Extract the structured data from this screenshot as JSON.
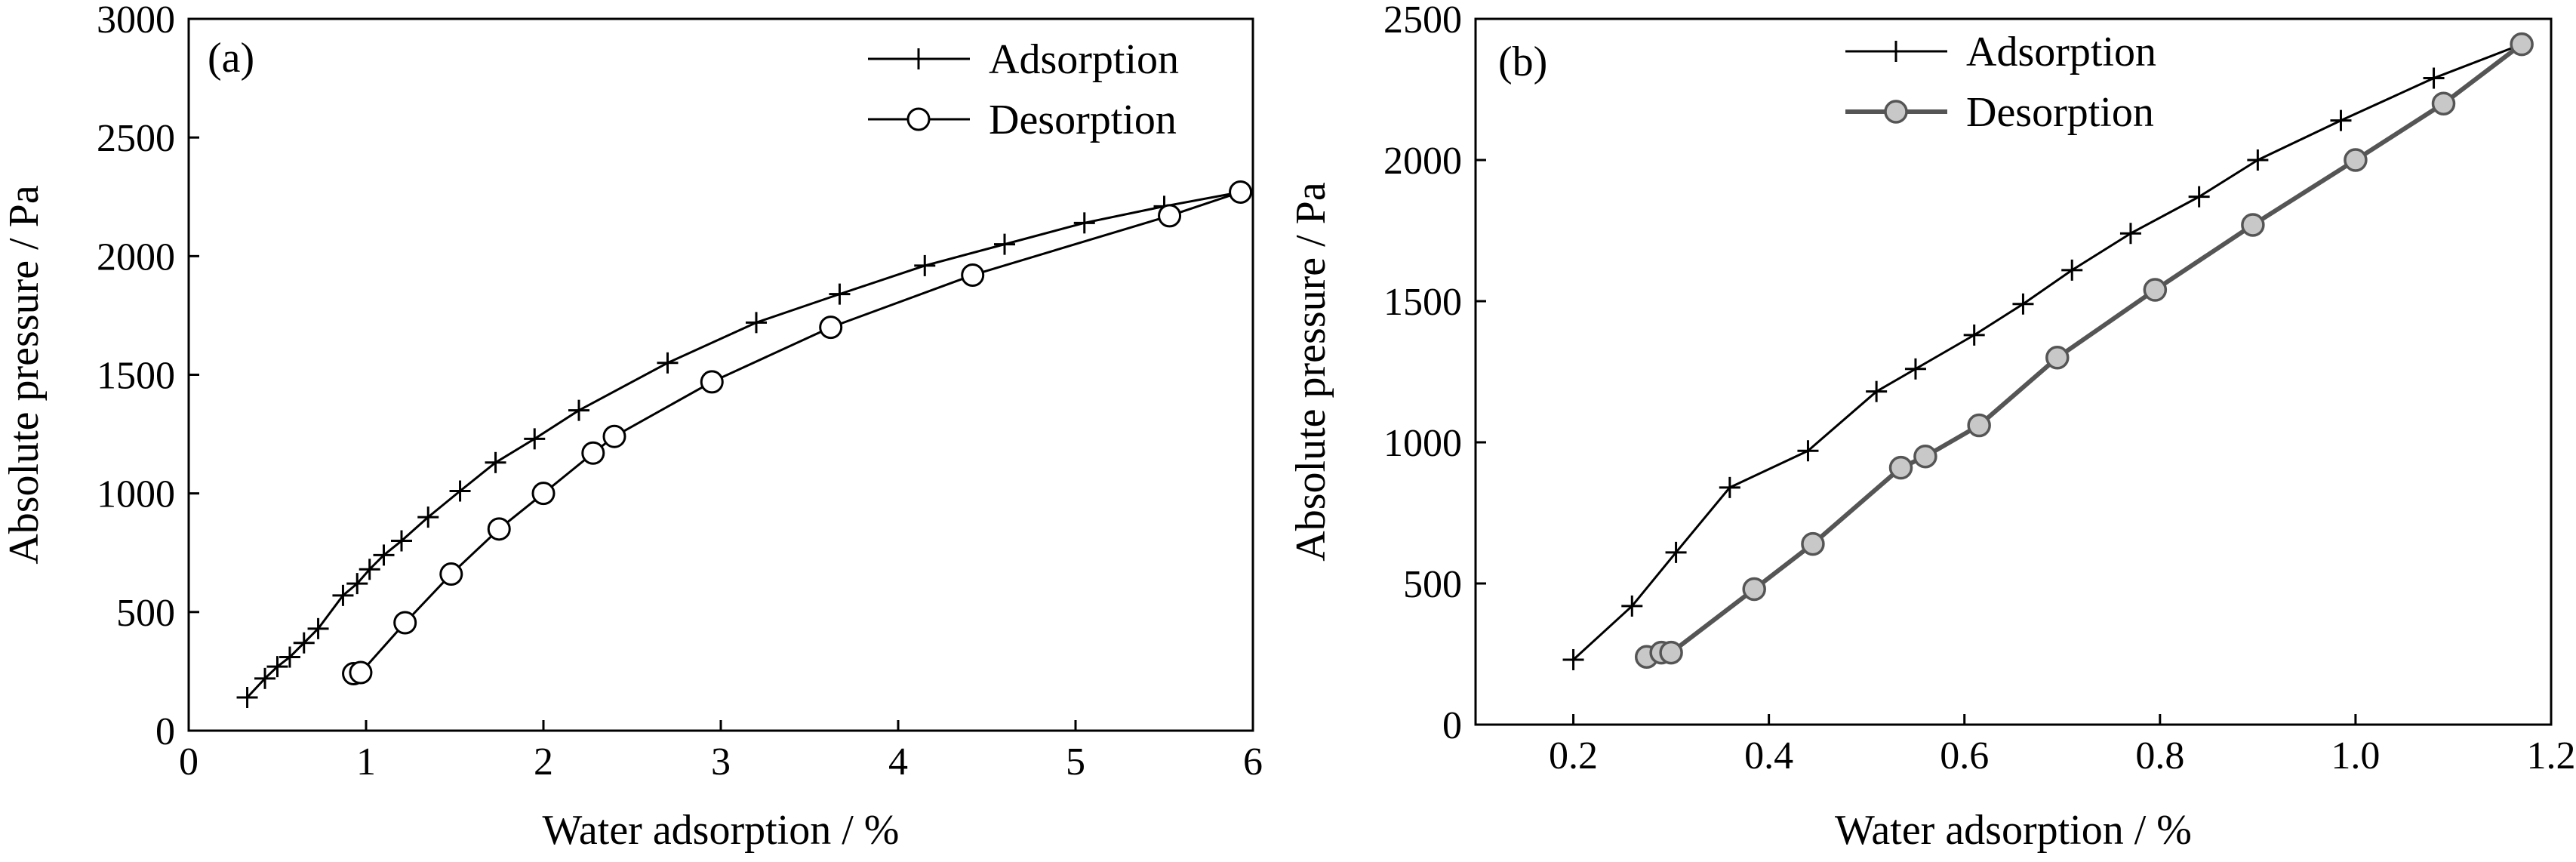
{
  "chart_data": [
    {
      "type": "line",
      "panel_label": "(a)",
      "xlabel": "Water adsorption / %",
      "ylabel": "Absolute pressure / Pa",
      "xlim": [
        0,
        6
      ],
      "ylim": [
        0,
        3000
      ],
      "xticks": [
        0,
        1,
        2,
        3,
        4,
        5,
        6
      ],
      "xtick_labels": [
        "0",
        "1",
        "2",
        "3",
        "4",
        "5",
        "6"
      ],
      "yticks": [
        0,
        500,
        1000,
        1500,
        2000,
        2500,
        3000
      ],
      "ytick_labels": [
        "0",
        "500",
        "1000",
        "1500",
        "2000",
        "2500",
        "3000"
      ],
      "legend_position": "top-right",
      "series": [
        {
          "name": "Adsorption",
          "marker": "plus",
          "color": "#000000",
          "x": [
            0.33,
            0.43,
            0.5,
            0.57,
            0.65,
            0.73,
            0.87,
            0.95,
            1.02,
            1.1,
            1.2,
            1.35,
            1.53,
            1.73,
            1.95,
            2.2,
            2.7,
            3.2,
            3.67,
            4.15,
            4.6,
            5.05,
            5.5,
            5.93
          ],
          "y": [
            140,
            220,
            270,
            310,
            370,
            430,
            570,
            620,
            680,
            740,
            800,
            900,
            1010,
            1130,
            1230,
            1350,
            1550,
            1720,
            1840,
            1960,
            2050,
            2140,
            2210,
            2270
          ]
        },
        {
          "name": "Desorption",
          "marker": "circle",
          "color": "#000000",
          "x": [
            0.93,
            0.97,
            1.22,
            1.48,
            1.75,
            2.0,
            2.28,
            2.4,
            2.95,
            3.62,
            4.42,
            5.53,
            5.93
          ],
          "y": [
            240,
            245,
            455,
            660,
            850,
            1000,
            1170,
            1240,
            1470,
            1700,
            1920,
            2170,
            2270
          ]
        }
      ]
    },
    {
      "type": "line",
      "panel_label": "(b)",
      "xlabel": "Water adsorption  / %",
      "ylabel": "Absolute pressure / Pa",
      "xlim": [
        0.1,
        1.2
      ],
      "ylim": [
        0,
        2500
      ],
      "xticks": [
        0.2,
        0.4,
        0.6,
        0.8,
        1.0,
        1.2
      ],
      "xtick_labels": [
        "0.2",
        "0.4",
        "0.6",
        "0.8",
        "1.0",
        "1.2"
      ],
      "yticks": [
        0,
        500,
        1000,
        1500,
        2000,
        2500
      ],
      "ytick_labels": [
        "0",
        "500",
        "1000",
        "1500",
        "2000",
        "2500"
      ],
      "legend_position": "top-center",
      "series": [
        {
          "name": "Adsorption",
          "marker": "plus",
          "color": "#000000",
          "x": [
            0.2,
            0.26,
            0.305,
            0.36,
            0.44,
            0.51,
            0.55,
            0.61,
            0.66,
            0.71,
            0.77,
            0.84,
            0.9,
            0.985,
            1.08,
            1.17
          ],
          "y": [
            230,
            420,
            610,
            840,
            970,
            1180,
            1260,
            1380,
            1490,
            1610,
            1740,
            1870,
            2000,
            2140,
            2290,
            2410
          ]
        },
        {
          "name": "Desorption",
          "marker": "circle-filled",
          "color": "#555555",
          "fill": "#c8c8c8",
          "x": [
            0.275,
            0.29,
            0.3,
            0.385,
            0.445,
            0.535,
            0.56,
            0.615,
            0.695,
            0.795,
            0.895,
            1.0,
            1.09,
            1.17
          ],
          "y": [
            240,
            255,
            255,
            480,
            640,
            910,
            950,
            1060,
            1300,
            1540,
            1770,
            2000,
            2200,
            2410
          ]
        }
      ]
    }
  ]
}
